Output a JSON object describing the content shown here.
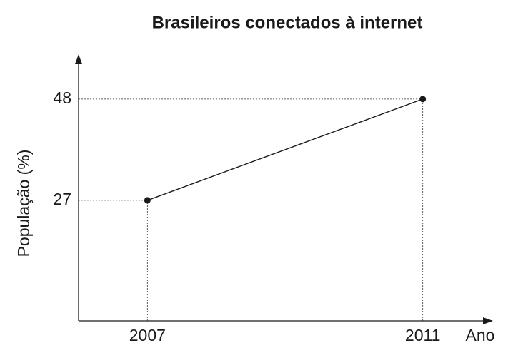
{
  "chart_data": {
    "type": "line",
    "title": "Brasileiros conectados à internet",
    "x_label": "Ano",
    "y_label": "População (%)",
    "x": [
      2007,
      2011
    ],
    "series": [
      {
        "name": "População",
        "color": "#1a1a1a",
        "values": [
          27,
          48
        ]
      }
    ],
    "xlim": [
      2006,
      2012
    ],
    "ylim": [
      2,
      57
    ],
    "xticks": [
      2007,
      2011
    ],
    "yticks": [
      27,
      48
    ]
  }
}
